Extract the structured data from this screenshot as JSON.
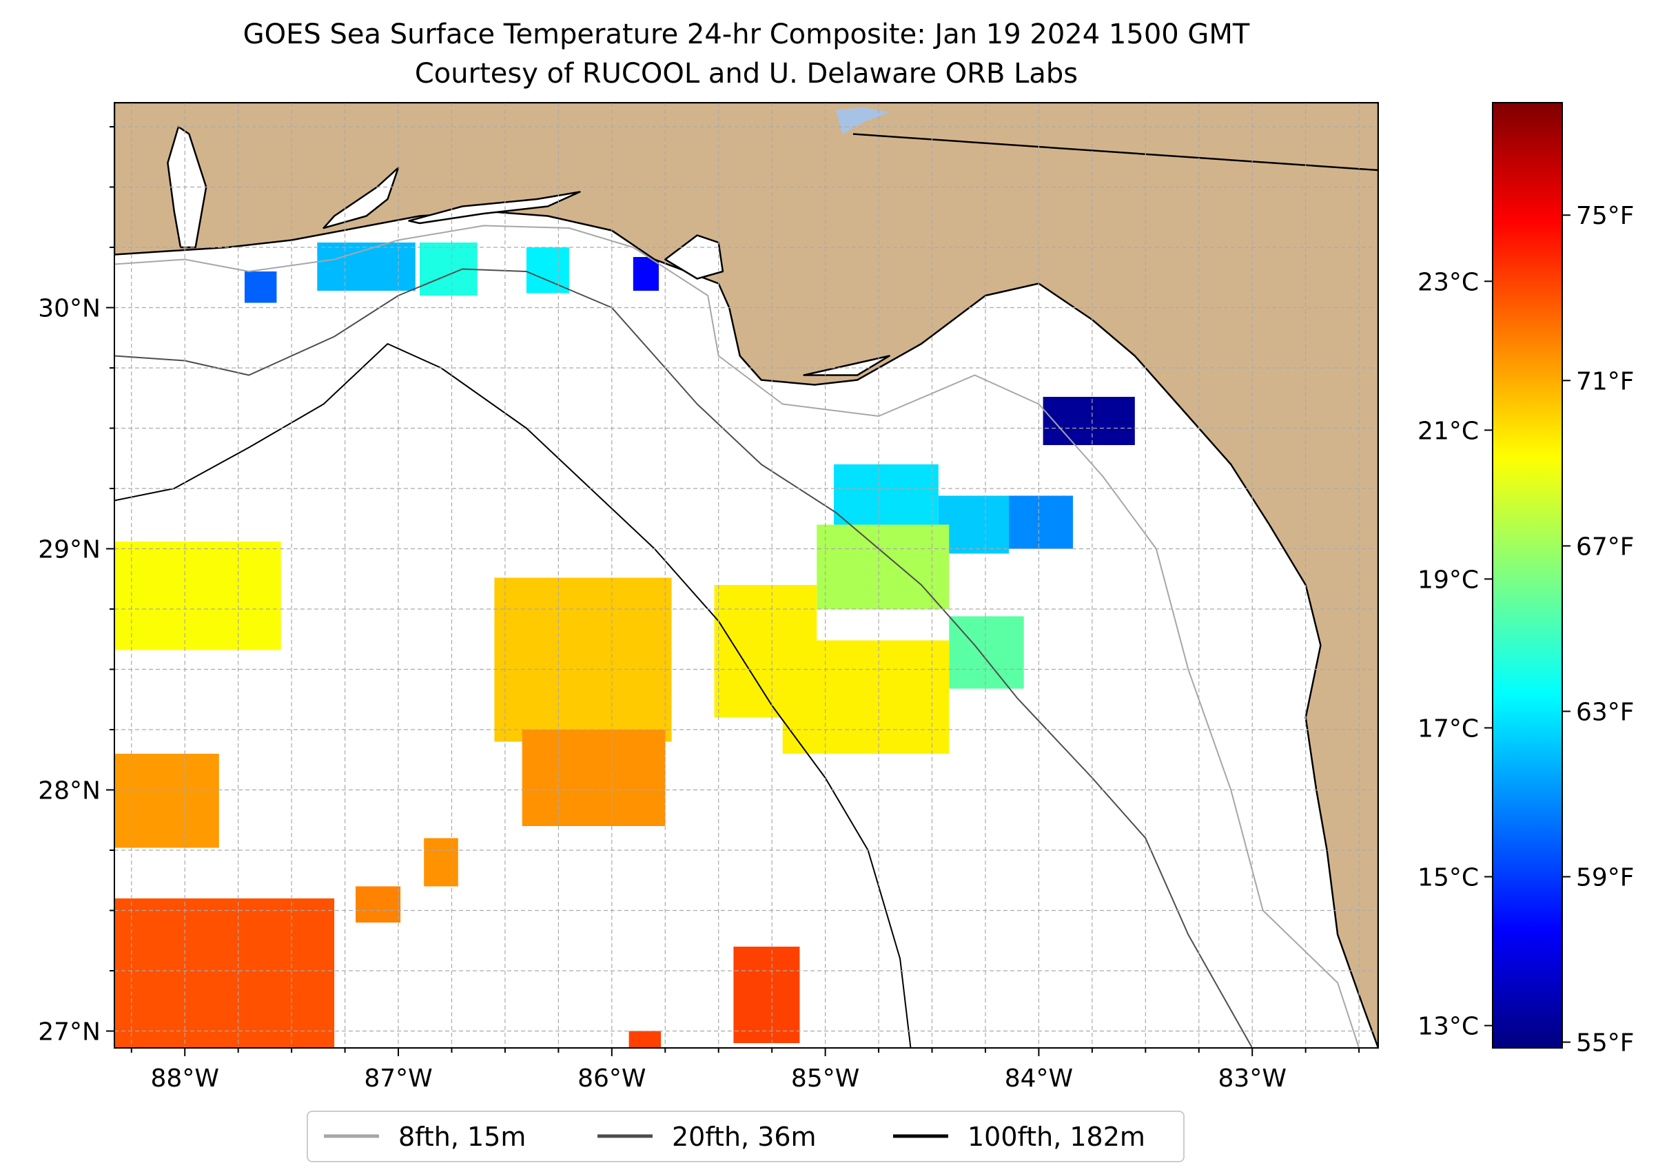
{
  "title": {
    "line1": "GOES Sea Surface Temperature 24-hr Composite: Jan 19 2024 1500 GMT",
    "line2": "Courtesy of RUCOOL and U. Delaware ORB Labs"
  },
  "map": {
    "region": "Northeastern Gulf of Mexico (Florida Panhandle)",
    "extent": {
      "lon": [
        -88.33,
        -82.41
      ],
      "lat": [
        26.93,
        30.85
      ]
    },
    "lon_ticks": [
      {
        "value": -88,
        "label": "88°W"
      },
      {
        "value": -87,
        "label": "87°W"
      },
      {
        "value": -86,
        "label": "86°W"
      },
      {
        "value": -85,
        "label": "85°W"
      },
      {
        "value": -84,
        "label": "84°W"
      },
      {
        "value": -83,
        "label": "83°W"
      }
    ],
    "lat_ticks": [
      {
        "value": 30,
        "label": "30°N"
      },
      {
        "value": 29,
        "label": "29°N"
      },
      {
        "value": 28,
        "label": "28°N"
      },
      {
        "value": 27,
        "label": "27°N"
      }
    ],
    "gridlines": true,
    "land_color": "#d2b48c",
    "water_color": "#ffffff",
    "lake_color": "#a6c3e6"
  },
  "colorbar": {
    "colormap": "jet",
    "celsius_range": [
      12.7,
      25.4
    ],
    "celsius_ticks": [
      {
        "value": 13,
        "label": "13°C"
      },
      {
        "value": 15,
        "label": "15°C"
      },
      {
        "value": 17,
        "label": "17°C"
      },
      {
        "value": 19,
        "label": "19°C"
      },
      {
        "value": 21,
        "label": "21°C"
      },
      {
        "value": 23,
        "label": "23°C"
      }
    ],
    "fahrenheit_ticks": [
      {
        "value": 55,
        "label": "55°F"
      },
      {
        "value": 59,
        "label": "59°F"
      },
      {
        "value": 63,
        "label": "63°F"
      },
      {
        "value": 67,
        "label": "67°F"
      },
      {
        "value": 71,
        "label": "71°F"
      },
      {
        "value": 75,
        "label": "75°F"
      }
    ]
  },
  "legend": {
    "placement": "bottom-center",
    "items": [
      {
        "label": "8fth, 15m",
        "color": "#a6a6a6"
      },
      {
        "label": "20fth, 36m",
        "color": "#4d4d4d"
      },
      {
        "label": "100fth, 182m",
        "color": "#000000"
      }
    ]
  },
  "sst_patches": [
    {
      "lon": [
        -87.72,
        -87.57
      ],
      "lat": [
        30.02,
        30.15
      ],
      "temp_c": 15.5
    },
    {
      "lon": [
        -87.38,
        -86.92
      ],
      "lat": [
        30.07,
        30.27
      ],
      "temp_c": 16.6
    },
    {
      "lon": [
        -86.9,
        -86.63
      ],
      "lat": [
        30.05,
        30.27
      ],
      "temp_c": 17.8
    },
    {
      "lon": [
        -86.4,
        -86.2
      ],
      "lat": [
        30.06,
        30.25
      ],
      "temp_c": 17.3
    },
    {
      "lon": [
        -85.9,
        -85.78
      ],
      "lat": [
        30.07,
        30.21
      ],
      "temp_c": 14.3
    },
    {
      "lon": [
        -83.98,
        -83.55
      ],
      "lat": [
        29.43,
        29.63
      ],
      "temp_c": 13.0
    },
    {
      "lon": [
        -84.96,
        -84.47
      ],
      "lat": [
        29.05,
        29.35
      ],
      "temp_c": 17.1
    },
    {
      "lon": [
        -84.47,
        -84.14
      ],
      "lat": [
        28.98,
        29.22
      ],
      "temp_c": 16.8
    },
    {
      "lon": [
        -84.14,
        -83.84
      ],
      "lat": [
        29.0,
        29.22
      ],
      "temp_c": 16.0
    },
    {
      "lon": [
        -85.04,
        -84.42
      ],
      "lat": [
        28.75,
        29.1
      ],
      "temp_c": 19.6
    },
    {
      "lon": [
        -84.42,
        -84.07
      ],
      "lat": [
        28.42,
        28.72
      ],
      "temp_c": 18.6
    },
    {
      "lon": [
        -85.2,
        -84.42
      ],
      "lat": [
        28.15,
        28.62
      ],
      "temp_c": 20.8
    },
    {
      "lon": [
        -85.52,
        -85.04
      ],
      "lat": [
        28.3,
        28.85
      ],
      "temp_c": 20.8
    },
    {
      "lon": [
        -86.55,
        -85.72
      ],
      "lat": [
        28.2,
        28.88
      ],
      "temp_c": 21.3
    },
    {
      "lon": [
        -86.42,
        -85.75
      ],
      "lat": [
        27.85,
        28.25
      ],
      "temp_c": 22.0
    },
    {
      "lon": [
        -88.33,
        -87.55
      ],
      "lat": [
        28.58,
        29.03
      ],
      "temp_c": 20.6
    },
    {
      "lon": [
        -88.33,
        -87.84
      ],
      "lat": [
        27.76,
        28.15
      ],
      "temp_c": 21.9
    },
    {
      "lon": [
        -86.88,
        -86.72
      ],
      "lat": [
        27.6,
        27.8
      ],
      "temp_c": 22.0
    },
    {
      "lon": [
        -87.2,
        -86.99
      ],
      "lat": [
        27.45,
        27.6
      ],
      "temp_c": 22.2
    },
    {
      "lon": [
        -88.33,
        -87.3
      ],
      "lat": [
        26.93,
        27.55
      ],
      "temp_c": 22.8
    },
    {
      "lon": [
        -85.43,
        -85.12
      ],
      "lat": [
        26.95,
        27.35
      ],
      "temp_c": 23.0
    },
    {
      "lon": [
        -85.92,
        -85.77
      ],
      "lat": [
        26.93,
        27.0
      ],
      "temp_c": 23.0
    }
  ],
  "land": [
    [
      [
        -88.33,
        30.85
      ],
      [
        -82.41,
        30.85
      ],
      [
        -82.41,
        26.93
      ],
      [
        -82.48,
        27.1
      ],
      [
        -82.6,
        27.4
      ],
      [
        -82.65,
        27.75
      ],
      [
        -82.7,
        28.0
      ],
      [
        -82.75,
        28.3
      ],
      [
        -82.68,
        28.6
      ],
      [
        -82.75,
        28.85
      ],
      [
        -82.92,
        29.1
      ],
      [
        -83.1,
        29.35
      ],
      [
        -83.35,
        29.6
      ],
      [
        -83.55,
        29.8
      ],
      [
        -83.75,
        29.95
      ],
      [
        -84.0,
        30.1
      ],
      [
        -84.25,
        30.05
      ],
      [
        -84.4,
        29.95
      ],
      [
        -84.55,
        29.85
      ],
      [
        -84.85,
        29.7
      ],
      [
        -85.05,
        29.68
      ],
      [
        -85.3,
        29.7
      ],
      [
        -85.4,
        29.8
      ],
      [
        -85.45,
        30.0
      ],
      [
        -85.5,
        30.1
      ],
      [
        -85.8,
        30.2
      ],
      [
        -86.0,
        30.32
      ],
      [
        -86.3,
        30.38
      ],
      [
        -86.6,
        30.4
      ],
      [
        -86.9,
        30.38
      ],
      [
        -87.2,
        30.33
      ],
      [
        -87.5,
        30.28
      ],
      [
        -87.8,
        30.25
      ],
      [
        -88.33,
        30.22
      ]
    ]
  ],
  "bays": [
    [
      [
        -87.95,
        30.25
      ],
      [
        -87.9,
        30.5
      ],
      [
        -87.98,
        30.72
      ],
      [
        -88.03,
        30.75
      ],
      [
        -88.08,
        30.6
      ],
      [
        -88.05,
        30.4
      ],
      [
        -88.02,
        30.25
      ]
    ],
    [
      [
        -86.95,
        30.36
      ],
      [
        -86.7,
        30.42
      ],
      [
        -86.35,
        30.45
      ],
      [
        -86.15,
        30.48
      ],
      [
        -86.3,
        30.42
      ],
      [
        -86.6,
        30.39
      ],
      [
        -86.9,
        30.35
      ]
    ],
    [
      [
        -87.35,
        30.33
      ],
      [
        -87.15,
        30.38
      ],
      [
        -87.05,
        30.45
      ],
      [
        -87.0,
        30.58
      ],
      [
        -87.1,
        30.5
      ],
      [
        -87.3,
        30.38
      ]
    ],
    [
      [
        -85.75,
        30.2
      ],
      [
        -85.6,
        30.3
      ],
      [
        -85.5,
        30.27
      ],
      [
        -85.48,
        30.15
      ],
      [
        -85.6,
        30.12
      ]
    ],
    [
      [
        -85.1,
        29.72
      ],
      [
        -84.9,
        29.76
      ],
      [
        -84.7,
        29.8
      ],
      [
        -84.85,
        29.72
      ]
    ]
  ],
  "lake": [
    [
      -84.95,
      30.82
    ],
    [
      -84.82,
      30.83
    ],
    [
      -84.7,
      30.81
    ],
    [
      -84.82,
      30.77
    ],
    [
      -84.92,
      30.72
    ]
  ],
  "boundary": [
    [
      -84.87,
      30.72
    ],
    [
      -82.41,
      30.57
    ]
  ],
  "isobaths": [
    {
      "depth": "8fth",
      "color": "#a6a6a6",
      "points": [
        [
          -88.33,
          30.18
        ],
        [
          -88.0,
          30.2
        ],
        [
          -87.7,
          30.15
        ],
        [
          -87.3,
          30.2
        ],
        [
          -87.0,
          30.28
        ],
        [
          -86.6,
          30.34
        ],
        [
          -86.2,
          30.33
        ],
        [
          -85.9,
          30.25
        ],
        [
          -85.55,
          30.05
        ],
        [
          -85.5,
          29.8
        ],
        [
          -85.2,
          29.6
        ],
        [
          -84.75,
          29.55
        ],
        [
          -84.3,
          29.72
        ],
        [
          -84.0,
          29.6
        ],
        [
          -83.7,
          29.3
        ],
        [
          -83.45,
          29.0
        ],
        [
          -83.3,
          28.5
        ],
        [
          -83.1,
          28.0
        ],
        [
          -82.95,
          27.5
        ],
        [
          -82.6,
          27.2
        ],
        [
          -82.5,
          26.93
        ]
      ]
    },
    {
      "depth": "20fth",
      "color": "#4d4d4d",
      "points": [
        [
          -88.33,
          29.8
        ],
        [
          -88.0,
          29.78
        ],
        [
          -87.7,
          29.72
        ],
        [
          -87.3,
          29.88
        ],
        [
          -87.0,
          30.05
        ],
        [
          -86.7,
          30.16
        ],
        [
          -86.4,
          30.15
        ],
        [
          -86.0,
          30.0
        ],
        [
          -85.75,
          29.75
        ],
        [
          -85.6,
          29.6
        ],
        [
          -85.3,
          29.35
        ],
        [
          -84.95,
          29.15
        ],
        [
          -84.55,
          28.85
        ],
        [
          -84.3,
          28.6
        ],
        [
          -84.1,
          28.38
        ],
        [
          -83.75,
          28.05
        ],
        [
          -83.5,
          27.8
        ],
        [
          -83.3,
          27.4
        ],
        [
          -83.0,
          26.93
        ]
      ]
    },
    {
      "depth": "100fth",
      "color": "#000000",
      "points": [
        [
          -88.33,
          29.2
        ],
        [
          -88.05,
          29.25
        ],
        [
          -87.7,
          29.42
        ],
        [
          -87.35,
          29.6
        ],
        [
          -87.05,
          29.85
        ],
        [
          -86.8,
          29.75
        ],
        [
          -86.4,
          29.5
        ],
        [
          -86.1,
          29.25
        ],
        [
          -85.8,
          29.0
        ],
        [
          -85.5,
          28.7
        ],
        [
          -85.25,
          28.35
        ],
        [
          -85.0,
          28.05
        ],
        [
          -84.8,
          27.75
        ],
        [
          -84.65,
          27.3
        ],
        [
          -84.6,
          26.93
        ]
      ]
    }
  ]
}
